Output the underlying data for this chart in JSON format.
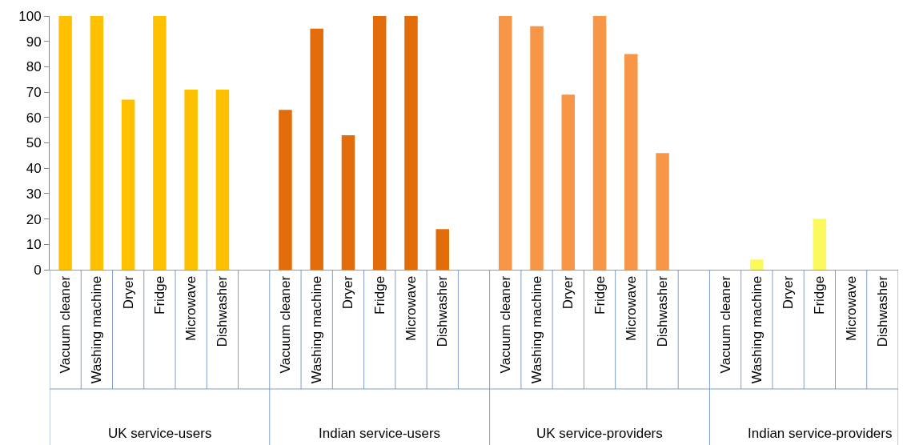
{
  "chart_data": {
    "type": "bar",
    "categories": [
      "Vacuum cleaner",
      "Washing machine",
      "Dryer",
      "Fridge",
      "Microwave",
      "Dishwasher",
      null,
      "Vacuum cleaner",
      "Washing machine",
      "Dryer",
      "Fridge",
      "Microwave",
      "Dishwasher",
      null,
      "Vacuum cleaner",
      "Washing machine",
      "Dryer",
      "Fridge",
      "Microwave",
      "Dishwasher",
      null,
      "Vacuum cleaner",
      "Washing machine",
      "Dryer",
      "Fridge",
      "Microwave",
      "Dishwasher"
    ],
    "values": [
      100,
      100,
      67,
      100,
      71,
      71,
      null,
      63,
      95,
      53,
      100,
      100,
      16,
      null,
      100,
      96,
      69,
      100,
      85,
      46,
      null,
      0,
      4,
      0,
      20,
      0,
      0
    ],
    "colors": [
      "#ffc000",
      "#ffc000",
      "#ffc000",
      "#ffc000",
      "#ffc000",
      "#ffc000",
      null,
      "#e36c0a",
      "#e36c0a",
      "#e36c0a",
      "#e36c0a",
      "#e36c0a",
      "#e36c0a",
      null,
      "#f79646",
      "#f79646",
      "#f79646",
      "#f79646",
      "#f79646",
      "#f79646",
      null,
      "#fafa5f",
      "#fafa5f",
      "#fafa5f",
      "#fafa5f",
      "#fafa5f",
      "#fafa5f"
    ],
    "annotations": [
      "UK service-users",
      "Indian service-users",
      "UK service-providers",
      "Indian service-providers"
    ],
    "ylim": [
      0,
      100
    ],
    "yticks": [
      0,
      10,
      20,
      30,
      40,
      50,
      60,
      70,
      80,
      90,
      100
    ]
  }
}
